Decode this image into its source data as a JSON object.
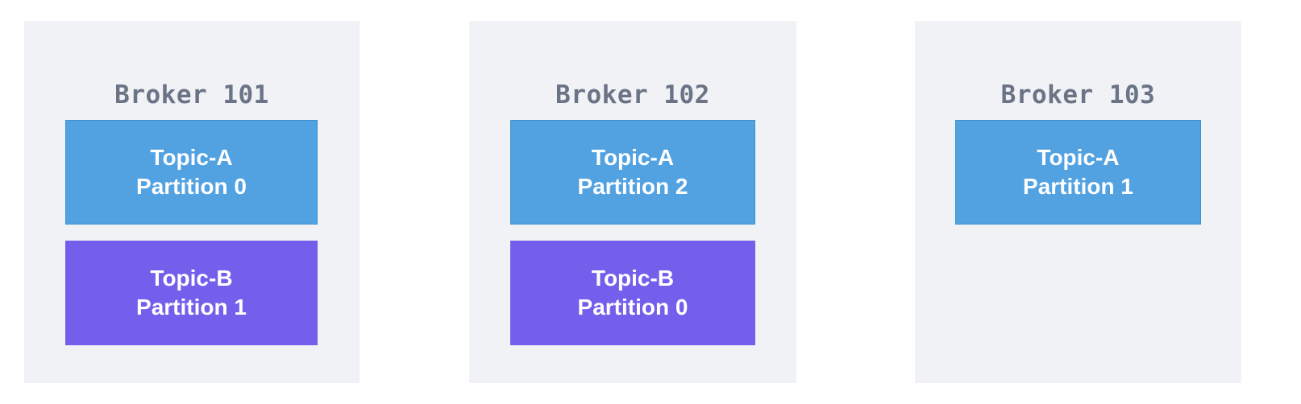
{
  "colors": {
    "background": "#ffffff",
    "broker_panel": "#f0f2f5",
    "broker_title": "#6b7486",
    "topic_a": "#52a2e2",
    "topic_b": "#735fec",
    "partition_text": "#ffffff"
  },
  "brokers": [
    {
      "title": "Broker 101",
      "partitions": [
        {
          "topic": "Topic-A",
          "partition": "Partition 0"
        },
        {
          "topic": "Topic-B",
          "partition": "Partition 1"
        }
      ]
    },
    {
      "title": "Broker 102",
      "partitions": [
        {
          "topic": "Topic-A",
          "partition": "Partition 2"
        },
        {
          "topic": "Topic-B",
          "partition": "Partition 0"
        }
      ]
    },
    {
      "title": "Broker 103",
      "partitions": [
        {
          "topic": "Topic-A",
          "partition": "Partition 1"
        }
      ]
    }
  ]
}
